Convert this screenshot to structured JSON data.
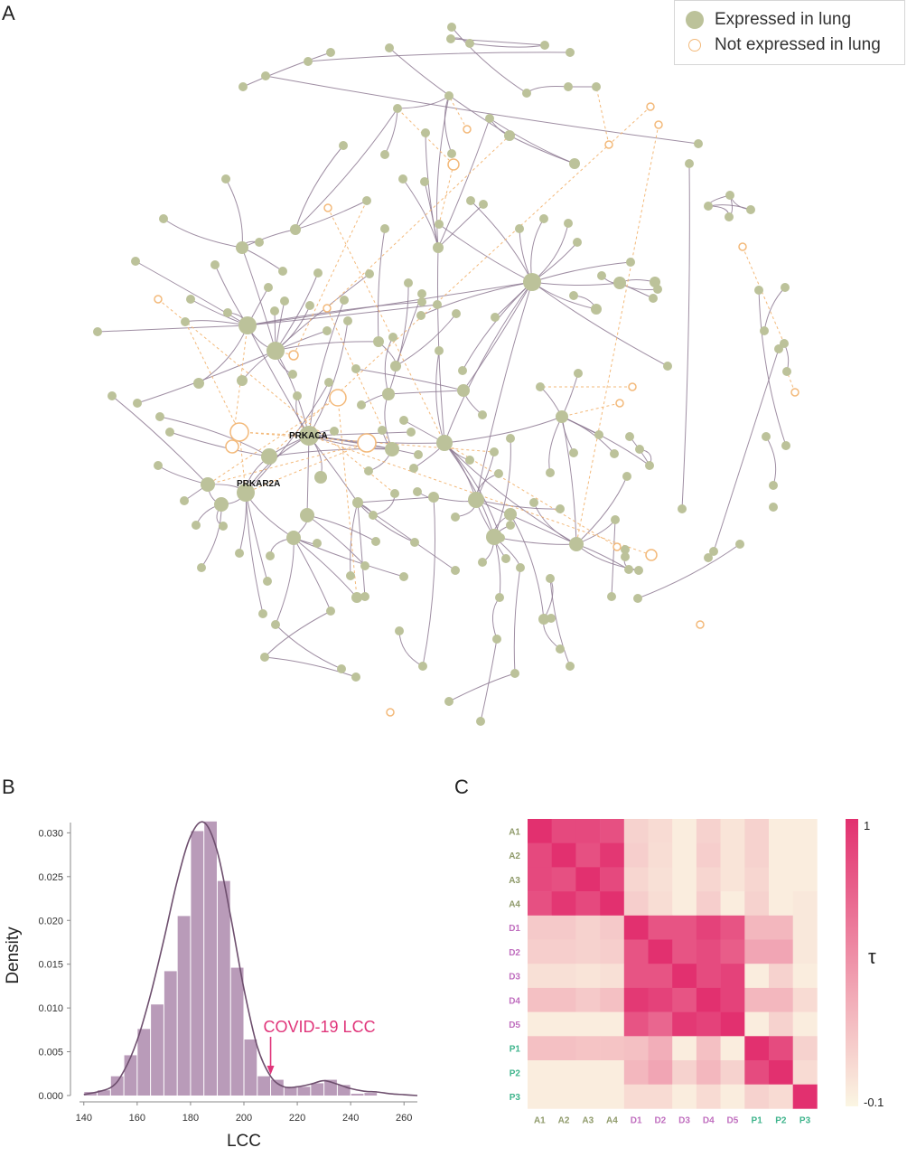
{
  "panels": {
    "a": {
      "letter": "A"
    },
    "b": {
      "letter": "B"
    },
    "c": {
      "letter": "C"
    }
  },
  "network": {
    "legend": {
      "expressed_label": "Expressed in lung",
      "not_expressed_label": "Not expressed in lung"
    },
    "highlighted_genes": [
      "PRKACA",
      "PRKAR2A"
    ],
    "colors": {
      "expressed": "#bcc29a",
      "not_expressed": "#f3b97a",
      "edge": "#8e7a93"
    }
  },
  "chart_data": [
    {
      "type": "bar",
      "subtype": "histogram_with_density",
      "xlabel": "LCC",
      "ylabel": "Density",
      "xlim": [
        135,
        265
      ],
      "ylim": [
        0,
        0.032
      ],
      "x_ticks": [
        "140",
        "160",
        "180",
        "200",
        "220",
        "240",
        "260"
      ],
      "x_tick_values": [
        140,
        160,
        180,
        200,
        220,
        240,
        260
      ],
      "y_ticks": [
        "0.000",
        "0.005",
        "0.010",
        "0.015",
        "0.020",
        "0.025",
        "0.030"
      ],
      "y_tick_values": [
        0,
        0.005,
        0.01,
        0.015,
        0.02,
        0.025,
        0.03
      ],
      "bin_starts": [
        140,
        145,
        150,
        155,
        160,
        165,
        170,
        175,
        180,
        185,
        190,
        195,
        200,
        205,
        210,
        215,
        220,
        225,
        230,
        235,
        240,
        245
      ],
      "bin_width": 5,
      "values": [
        0.0004,
        0.0006,
        0.0022,
        0.0046,
        0.0076,
        0.0104,
        0.0142,
        0.0205,
        0.0302,
        0.0313,
        0.0245,
        0.0146,
        0.0064,
        0.0022,
        0.0018,
        0.001,
        0.001,
        0.0014,
        0.0018,
        0.0012,
        0.0002,
        0.0003
      ],
      "density_x": [
        140,
        150,
        155,
        160,
        165,
        170,
        175,
        180,
        185,
        190,
        195,
        200,
        205,
        210,
        215,
        220,
        225,
        230,
        235,
        240,
        245,
        250,
        255,
        260,
        265
      ],
      "density_y": [
        0.0001,
        0.0009,
        0.0028,
        0.0063,
        0.0115,
        0.0178,
        0.0245,
        0.0296,
        0.0312,
        0.0279,
        0.0205,
        0.0122,
        0.0056,
        0.0022,
        0.001,
        0.001,
        0.0013,
        0.0017,
        0.0013,
        0.0008,
        0.0005,
        0.0004,
        0.0002,
        0.0001,
        0.0
      ],
      "annotation": {
        "text": "COVID-19 LCC",
        "x": 210
      },
      "colors": {
        "bar": "#b99bb9",
        "line": "#6e4f6e",
        "annotation": "#e0357a"
      }
    },
    {
      "type": "heatmap",
      "rows": [
        "A1",
        "A2",
        "A3",
        "A4",
        "D1",
        "D2",
        "D3",
        "D4",
        "D5",
        "P1",
        "P2",
        "P3"
      ],
      "cols": [
        "A1",
        "A2",
        "A3",
        "A4",
        "D1",
        "D2",
        "D3",
        "D4",
        "D5",
        "P1",
        "P2",
        "P3"
      ],
      "groups": {
        "A": "#8f9a6a",
        "D": "#c06fbf",
        "P": "#3fb48c"
      },
      "values": [
        [
          1.0,
          0.86,
          0.86,
          0.82,
          0.1,
          0.05,
          -0.05,
          0.1,
          0.0,
          0.1,
          -0.05,
          -0.05
        ],
        [
          0.86,
          1.0,
          0.82,
          0.96,
          0.12,
          0.04,
          -0.05,
          0.12,
          0.0,
          0.1,
          -0.05,
          -0.05
        ],
        [
          0.86,
          0.82,
          1.0,
          0.86,
          0.08,
          0.02,
          -0.05,
          0.08,
          0.0,
          0.08,
          -0.05,
          -0.05
        ],
        [
          0.82,
          0.96,
          0.86,
          1.0,
          0.12,
          0.04,
          -0.05,
          0.12,
          -0.05,
          0.1,
          -0.05,
          -0.02
        ],
        [
          0.15,
          0.15,
          0.1,
          0.15,
          1.0,
          0.8,
          0.8,
          0.9,
          0.8,
          0.25,
          0.25,
          -0.02
        ],
        [
          0.12,
          0.12,
          0.1,
          0.12,
          0.8,
          1.0,
          0.8,
          0.85,
          0.75,
          0.35,
          0.35,
          -0.02
        ],
        [
          0.02,
          0.02,
          0.0,
          0.02,
          0.8,
          0.8,
          1.0,
          0.85,
          0.9,
          -0.05,
          0.1,
          -0.05
        ],
        [
          0.2,
          0.2,
          0.15,
          0.2,
          0.95,
          0.9,
          0.8,
          1.0,
          0.9,
          0.25,
          0.25,
          0.05
        ],
        [
          -0.05,
          -0.05,
          -0.05,
          -0.05,
          0.8,
          0.7,
          0.95,
          0.9,
          1.0,
          -0.05,
          0.1,
          -0.05
        ],
        [
          0.2,
          0.2,
          0.18,
          0.18,
          0.2,
          0.3,
          -0.05,
          0.2,
          -0.05,
          1.0,
          0.85,
          0.1
        ],
        [
          -0.05,
          -0.05,
          -0.05,
          -0.05,
          0.25,
          0.35,
          0.1,
          0.25,
          0.1,
          0.85,
          1.0,
          0.05
        ],
        [
          -0.05,
          -0.05,
          -0.05,
          -0.05,
          0.05,
          0.05,
          -0.05,
          0.05,
          -0.05,
          0.1,
          0.05,
          1.0
        ]
      ],
      "scale": {
        "min": -0.1,
        "max": 1,
        "min_label": "-0.1",
        "max_label": "1",
        "title": "τ",
        "low_color": "#fbf6e3",
        "high_color": "#e2306f"
      }
    }
  ]
}
